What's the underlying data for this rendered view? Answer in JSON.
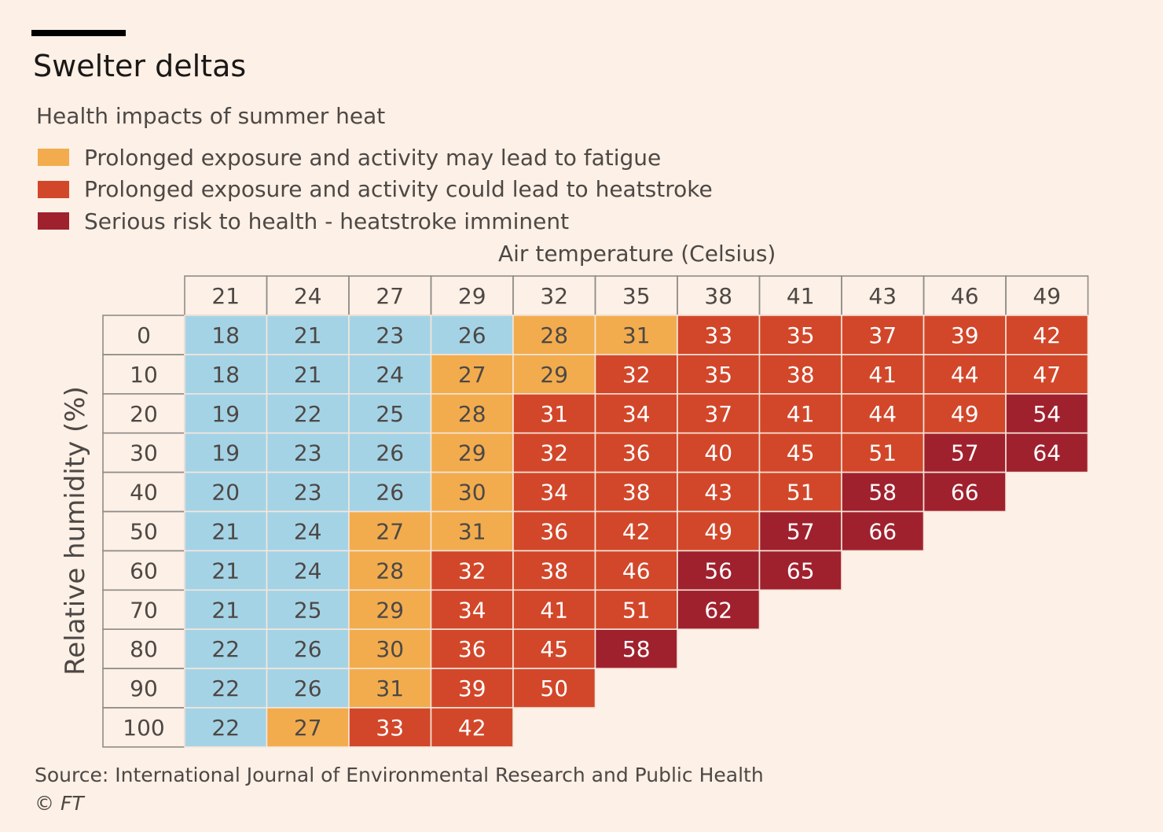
{
  "title": "Swelter deltas",
  "subtitle": "Health impacts of summer heat",
  "legend": [
    {
      "label": "Prolonged exposure and activity may lead to fatigue",
      "color": "#f2ac4e"
    },
    {
      "label": "Prolonged exposure and activity could lead to heatstroke",
      "color": "#d2472a"
    },
    {
      "label": "Serious risk to health - heatstroke imminent",
      "color": "#a0212e"
    }
  ],
  "colors": {
    "cool": "#a5d3e6",
    "fatigue": "#f2ac4e",
    "heatstroke": "#d2472a",
    "serious": "#a0212e",
    "cell_border": "#f5e6da",
    "header_border": "#8f8c88"
  },
  "source": "Source: International Journal of Environmental Research and Public Health",
  "copyright": "© FT",
  "chart_data": {
    "type": "heatmap",
    "xlabel": "Air temperature (Celsius)",
    "ylabel": "Relative humidity (%)",
    "x": [
      21,
      24,
      27,
      29,
      32,
      35,
      38,
      41,
      43,
      46,
      49
    ],
    "y": [
      0,
      10,
      20,
      30,
      40,
      50,
      60,
      70,
      80,
      90,
      100
    ],
    "values": [
      [
        18,
        21,
        23,
        26,
        28,
        31,
        33,
        35,
        37,
        39,
        42
      ],
      [
        18,
        21,
        24,
        27,
        29,
        32,
        35,
        38,
        41,
        44,
        47
      ],
      [
        19,
        22,
        25,
        28,
        31,
        34,
        37,
        41,
        44,
        49,
        54
      ],
      [
        19,
        23,
        26,
        29,
        32,
        36,
        40,
        45,
        51,
        57,
        64
      ],
      [
        20,
        23,
        26,
        30,
        34,
        38,
        43,
        51,
        58,
        66,
        null
      ],
      [
        21,
        24,
        27,
        31,
        36,
        42,
        49,
        57,
        66,
        null,
        null
      ],
      [
        21,
        24,
        28,
        32,
        38,
        46,
        56,
        65,
        null,
        null,
        null
      ],
      [
        21,
        25,
        29,
        34,
        41,
        51,
        62,
        null,
        null,
        null,
        null
      ],
      [
        22,
        26,
        30,
        36,
        45,
        58,
        null,
        null,
        null,
        null,
        null
      ],
      [
        22,
        26,
        31,
        39,
        50,
        null,
        null,
        null,
        null,
        null,
        null
      ],
      [
        22,
        27,
        33,
        42,
        null,
        null,
        null,
        null,
        null,
        null,
        null
      ]
    ],
    "categories_grid": [
      [
        "cool",
        "cool",
        "cool",
        "cool",
        "fatigue",
        "fatigue",
        "heatstroke",
        "heatstroke",
        "heatstroke",
        "heatstroke",
        "heatstroke"
      ],
      [
        "cool",
        "cool",
        "cool",
        "fatigue",
        "fatigue",
        "heatstroke",
        "heatstroke",
        "heatstroke",
        "heatstroke",
        "heatstroke",
        "heatstroke"
      ],
      [
        "cool",
        "cool",
        "cool",
        "fatigue",
        "heatstroke",
        "heatstroke",
        "heatstroke",
        "heatstroke",
        "heatstroke",
        "heatstroke",
        "serious"
      ],
      [
        "cool",
        "cool",
        "cool",
        "fatigue",
        "heatstroke",
        "heatstroke",
        "heatstroke",
        "heatstroke",
        "heatstroke",
        "serious",
        "serious"
      ],
      [
        "cool",
        "cool",
        "cool",
        "fatigue",
        "heatstroke",
        "heatstroke",
        "heatstroke",
        "heatstroke",
        "serious",
        "serious",
        null
      ],
      [
        "cool",
        "cool",
        "fatigue",
        "fatigue",
        "heatstroke",
        "heatstroke",
        "heatstroke",
        "serious",
        "serious",
        null,
        null
      ],
      [
        "cool",
        "cool",
        "fatigue",
        "heatstroke",
        "heatstroke",
        "heatstroke",
        "serious",
        "serious",
        null,
        null,
        null
      ],
      [
        "cool",
        "cool",
        "fatigue",
        "heatstroke",
        "heatstroke",
        "heatstroke",
        "serious",
        null,
        null,
        null,
        null
      ],
      [
        "cool",
        "cool",
        "fatigue",
        "heatstroke",
        "heatstroke",
        "serious",
        null,
        null,
        null,
        null,
        null
      ],
      [
        "cool",
        "cool",
        "fatigue",
        "heatstroke",
        "heatstroke",
        null,
        null,
        null,
        null,
        null,
        null
      ],
      [
        "cool",
        "fatigue",
        "heatstroke",
        "heatstroke",
        null,
        null,
        null,
        null,
        null,
        null,
        null
      ]
    ]
  }
}
